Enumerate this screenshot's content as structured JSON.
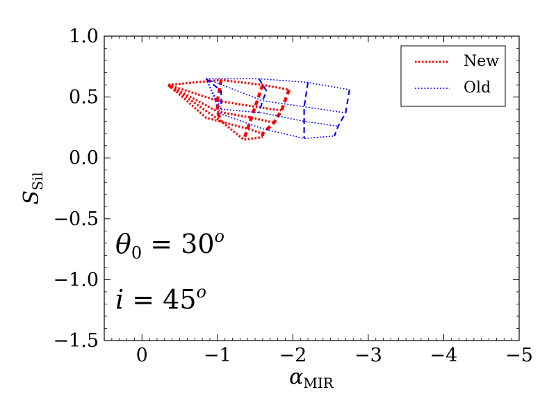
{
  "chart_data": {
    "type": "line",
    "xlabel": "α",
    "xlabel_sub": "MIR",
    "ylabel": "S",
    "ylabel_sub": "Sil",
    "xlim": [
      0.5,
      -5
    ],
    "ylim": [
      -1.5,
      1.0
    ],
    "x_ticks": [
      0,
      -1,
      -2,
      -3,
      -4,
      -5
    ],
    "x_tick_labels": [
      "0",
      "−1",
      "−2",
      "−3",
      "−4",
      "−5"
    ],
    "y_ticks": [
      1.0,
      0.5,
      0.0,
      -0.5,
      -1.0,
      -1.5
    ],
    "y_tick_labels": [
      "1.0",
      "0.5",
      "0.0",
      "−0.5",
      "−1.0",
      "−1.5"
    ],
    "grid": false,
    "legend": {
      "location": "top-right",
      "entries": [
        {
          "label": "New",
          "color": "#ff0000",
          "style": "dotted"
        },
        {
          "label": "Old",
          "color": "#0000ff",
          "style": "dotted"
        }
      ]
    },
    "annotations": [
      {
        "text_main": "θ",
        "text_sub": "0",
        "text_rest": " = 30",
        "text_sup": "o"
      },
      {
        "text_main": "i",
        "text_sub": "",
        "text_rest": " = 45",
        "text_sup": "o"
      }
    ],
    "series": [
      {
        "name": "New",
        "color": "#ff0000",
        "dotted_lines": [
          [
            [
              -0.35,
              0.6
            ],
            [
              -1.05,
              0.64
            ],
            [
              -1.6,
              0.6
            ],
            [
              -1.95,
              0.56
            ]
          ],
          [
            [
              -0.35,
              0.6
            ],
            [
              -1.0,
              0.47
            ],
            [
              -1.5,
              0.42
            ],
            [
              -1.85,
              0.39
            ]
          ],
          [
            [
              -0.35,
              0.6
            ],
            [
              -1.0,
              0.38
            ],
            [
              -1.45,
              0.33
            ],
            [
              -1.75,
              0.29
            ]
          ],
          [
            [
              -0.35,
              0.6
            ],
            [
              -0.85,
              0.33
            ],
            [
              -1.4,
              0.24
            ],
            [
              -1.6,
              0.2
            ]
          ],
          [
            [
              -0.35,
              0.6
            ],
            [
              -1.05,
              0.3
            ],
            [
              -1.35,
              0.15
            ],
            [
              -1.6,
              0.17
            ]
          ]
        ],
        "dashed_lines": [
          [
            [
              -0.35,
              0.6
            ],
            [
              -0.45,
              0.55
            ]
          ],
          [
            [
              -1.05,
              0.64
            ],
            [
              -1.0,
              0.47
            ],
            [
              -1.0,
              0.38
            ],
            [
              -1.05,
              0.3
            ]
          ],
          [
            [
              -1.6,
              0.6
            ],
            [
              -1.5,
              0.42
            ],
            [
              -1.45,
              0.33
            ],
            [
              -1.4,
              0.24
            ],
            [
              -1.35,
              0.15
            ]
          ],
          [
            [
              -1.95,
              0.56
            ],
            [
              -1.85,
              0.39
            ],
            [
              -1.75,
              0.29
            ],
            [
              -1.6,
              0.2
            ],
            [
              -1.6,
              0.17
            ]
          ]
        ]
      },
      {
        "name": "Old",
        "color": "#0000ff",
        "dotted_lines": [
          [
            [
              -0.85,
              0.65
            ],
            [
              -1.55,
              0.65
            ],
            [
              -2.2,
              0.62
            ],
            [
              -2.75,
              0.56
            ]
          ],
          [
            [
              -0.85,
              0.65
            ],
            [
              -1.6,
              0.47
            ],
            [
              -2.15,
              0.42
            ],
            [
              -2.7,
              0.37
            ]
          ],
          [
            [
              -0.85,
              0.65
            ],
            [
              -1.05,
              0.4
            ],
            [
              -1.6,
              0.37
            ],
            [
              -2.15,
              0.3
            ],
            [
              -2.6,
              0.26
            ]
          ],
          [
            [
              -0.85,
              0.65
            ],
            [
              -1.05,
              0.36
            ],
            [
              -1.6,
              0.24
            ],
            [
              -2.15,
              0.16
            ],
            [
              -2.55,
              0.18
            ]
          ]
        ],
        "dashed_lines": [
          [
            [
              -0.85,
              0.65
            ],
            [
              -1.05,
              0.55
            ],
            [
              -1.05,
              0.4
            ]
          ],
          [
            [
              -1.55,
              0.65
            ],
            [
              -1.65,
              0.55
            ],
            [
              -1.6,
              0.47
            ],
            [
              -1.55,
              0.37
            ]
          ],
          [
            [
              -2.2,
              0.62
            ],
            [
              -2.15,
              0.42
            ],
            [
              -2.15,
              0.3
            ],
            [
              -2.15,
              0.16
            ]
          ],
          [
            [
              -2.75,
              0.56
            ],
            [
              -2.7,
              0.37
            ],
            [
              -2.6,
              0.26
            ],
            [
              -2.55,
              0.18
            ]
          ]
        ]
      }
    ]
  }
}
